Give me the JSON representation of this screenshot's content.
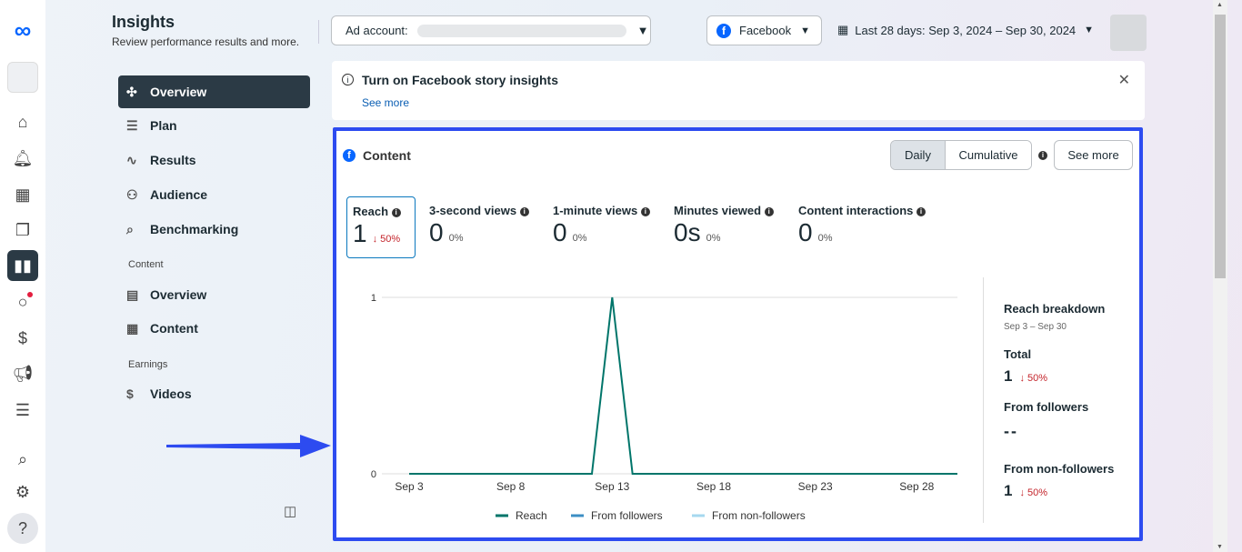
{
  "header": {
    "title": "Insights",
    "subtitle": "Review performance results and more.",
    "ad_account_label": "Ad account:",
    "platform": "Facebook",
    "date_range": "Last 28 days: Sep 3, 2024 – Sep 30, 2024"
  },
  "rail": {
    "icons": [
      "meta-logo-icon",
      "account-avatar",
      "home-icon",
      "bell-icon",
      "table-icon",
      "pages-icon",
      "insights-icon",
      "chat-icon",
      "dollar-icon",
      "megaphone-icon",
      "menu-icon",
      "search-icon",
      "gear-icon",
      "help-icon"
    ]
  },
  "nav": {
    "items": [
      {
        "label": "Overview",
        "icon": "network-icon"
      },
      {
        "label": "Plan",
        "icon": "list-icon"
      },
      {
        "label": "Results",
        "icon": "trend-icon"
      },
      {
        "label": "Audience",
        "icon": "people-icon"
      },
      {
        "label": "Benchmarking",
        "icon": "benchmark-icon"
      }
    ],
    "content_section": "Content",
    "content_items": [
      {
        "label": "Overview"
      },
      {
        "label": "Content"
      }
    ],
    "earnings_section": "Earnings",
    "earnings_items": [
      {
        "label": "Videos"
      }
    ]
  },
  "banner": {
    "title": "Turn on Facebook story insights",
    "link": "See more"
  },
  "content": {
    "title": "Content",
    "toggle": [
      "Daily",
      "Cumulative"
    ],
    "selected": "Daily",
    "see_more": "See more",
    "metrics": [
      {
        "label": "Reach",
        "value": "1",
        "change": "50%",
        "direction": "down"
      },
      {
        "label": "3-second views",
        "value": "0",
        "change": "0%"
      },
      {
        "label": "1-minute views",
        "value": "0",
        "change": "0%"
      },
      {
        "label": "Minutes viewed",
        "value": "0s",
        "change": "0%"
      },
      {
        "label": "Content interactions",
        "value": "0",
        "change": "0%"
      }
    ],
    "breakdown": {
      "title": "Reach breakdown",
      "range": "Sep 3 – Sep 30",
      "total_label": "Total",
      "total_value": "1",
      "total_change": "50%",
      "followers_label": "From followers",
      "followers_value": "--",
      "nonfollowers_label": "From non-followers",
      "nonfollowers_value": "1",
      "nonfollowers_change": "50%"
    }
  },
  "colors": {
    "accent_border": "#2d4bf0",
    "reach": "#00756a",
    "followers": "#3d8fc4",
    "nonfollowers": "#a6d8ef",
    "down": "#c4242b"
  },
  "chart_data": {
    "type": "line",
    "x": [
      "Sep 3",
      "Sep 4",
      "Sep 5",
      "Sep 6",
      "Sep 7",
      "Sep 8",
      "Sep 9",
      "Sep 10",
      "Sep 11",
      "Sep 12",
      "Sep 13",
      "Sep 14",
      "Sep 15",
      "Sep 16",
      "Sep 17",
      "Sep 18",
      "Sep 19",
      "Sep 20",
      "Sep 21",
      "Sep 22",
      "Sep 23",
      "Sep 24",
      "Sep 25",
      "Sep 26",
      "Sep 27",
      "Sep 28",
      "Sep 29",
      "Sep 30"
    ],
    "x_ticks": [
      "Sep 3",
      "Sep 8",
      "Sep 13",
      "Sep 18",
      "Sep 23",
      "Sep 28"
    ],
    "y_ticks": [
      "0",
      "1"
    ],
    "ylim": [
      0,
      1
    ],
    "grid": true,
    "legend": "bottom",
    "series": [
      {
        "name": "Reach",
        "values": [
          0,
          0,
          0,
          0,
          0,
          0,
          0,
          0,
          0,
          0,
          1,
          0,
          0,
          0,
          0,
          0,
          0,
          0,
          0,
          0,
          0,
          0,
          0,
          0,
          0,
          0,
          0,
          0
        ]
      }
    ],
    "legend_entries": [
      "Reach",
      "From followers",
      "From non-followers"
    ]
  }
}
